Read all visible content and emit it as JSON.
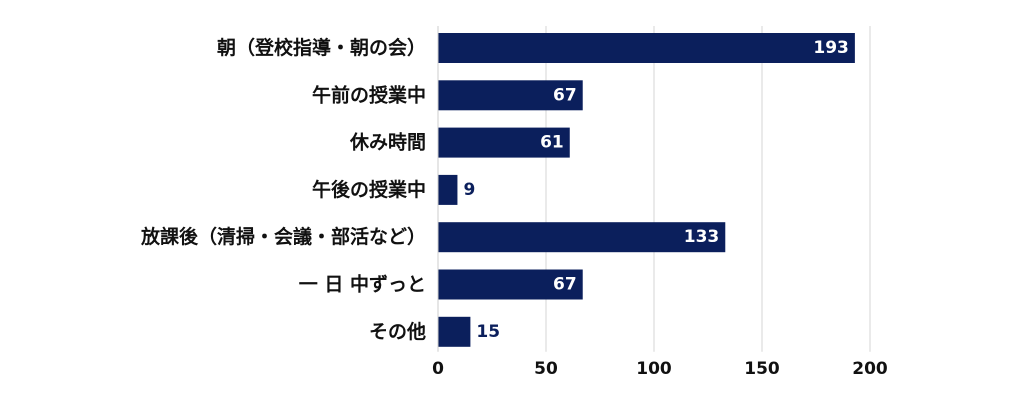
{
  "chart_data": {
    "type": "bar",
    "orientation": "horizontal",
    "categories": [
      "朝（登校指導・朝の会）",
      "午前の授業中",
      "休み時間",
      "午後の授業中",
      "放課後（清掃・会議・部活など）",
      "一 日 中ずっと",
      "その他"
    ],
    "values": [
      193,
      67,
      61,
      9,
      133,
      67,
      15
    ],
    "xlim": [
      0,
      200
    ],
    "xticks": [
      0,
      50,
      100,
      150,
      200
    ],
    "grid": true,
    "bar_color": "#0b1f5c",
    "title": "",
    "xlabel": "",
    "ylabel": ""
  }
}
